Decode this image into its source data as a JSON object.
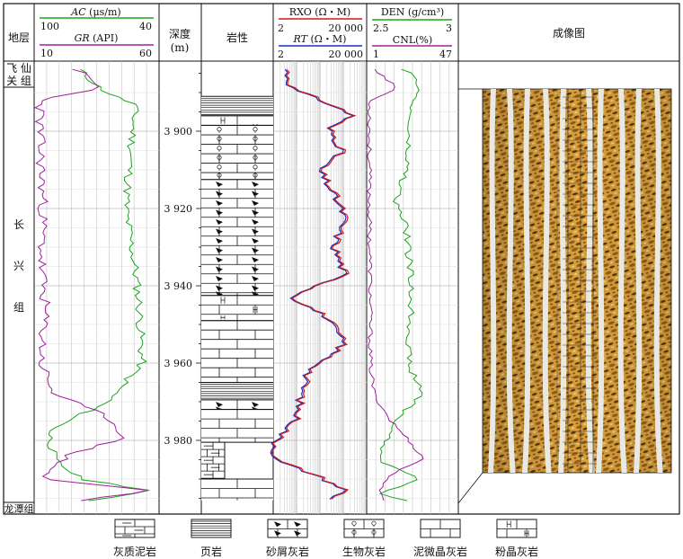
{
  "header": {
    "strata": "地层",
    "depth_line1": "深度",
    "depth_line2": "(m)",
    "lithology": "岩性",
    "image": "成像图"
  },
  "curves": {
    "ac": {
      "name": "AC",
      "unit": " (μs/m)",
      "min": "100",
      "max": "40",
      "color": "#1aa51a"
    },
    "gr": {
      "name": "GR",
      "unit": " (API)",
      "min": "10",
      "max": "60",
      "color": "#a0209c"
    },
    "rxo": {
      "name": "RXO",
      "unit": " (Ω・M)",
      "min": "2",
      "max": "20 000",
      "color": "#d01818"
    },
    "rt": {
      "name": "RT",
      "unit": " (Ω・M)",
      "min": "2",
      "max": "20 000",
      "color": "#1830c0"
    },
    "den": {
      "name": "DEN (g/cm³)",
      "min": "2.5",
      "max": "3",
      "color": "#1aa51a"
    },
    "cnl": {
      "name": "CNL(%)",
      "min": "1",
      "max": "47",
      "color": "#a0209c"
    }
  },
  "formations": [
    {
      "label": "飞仙关组",
      "display": [
        "飞 仙",
        "关 组"
      ]
    },
    {
      "label": "长兴组",
      "display": [
        "长",
        "兴",
        "组"
      ]
    },
    {
      "label": "龙潭组",
      "display": [
        "龙潭组"
      ]
    }
  ],
  "depth_ticks": [
    "3 900",
    "3 920",
    "3 940",
    "3 960",
    "3 980"
  ],
  "lithology_layers": [
    {
      "type": "shale",
      "top": 3891.0,
      "base": 3896.0
    },
    {
      "type": "silty-limestone",
      "top": 3896.0,
      "base": 3898.5
    },
    {
      "type": "bioclastic-limestone",
      "top": 3898.5,
      "base": 3912.5
    },
    {
      "type": "calcarenite",
      "top": 3912.5,
      "base": 3942.5
    },
    {
      "type": "silty-limestone",
      "top": 3942.5,
      "base": 3949.0
    },
    {
      "type": "micritic-limestone",
      "top": 3949.0,
      "base": 3965.0
    },
    {
      "type": "shale",
      "top": 3965.0,
      "base": 3969.5
    },
    {
      "type": "calcarenite",
      "top": 3969.5,
      "base": 3972.0
    },
    {
      "type": "micritic-limestone",
      "top": 3972.0,
      "base": 3980.5
    },
    {
      "type": "argillaceous-limestone",
      "top": 3980.5,
      "base": 3990.0
    },
    {
      "type": "micritic-limestone",
      "top": 3990.0,
      "base": 3995.5
    }
  ],
  "legend": [
    {
      "type": "argillaceous-limestone",
      "label": "灰质泥岩"
    },
    {
      "type": "shale",
      "label": "页岩"
    },
    {
      "type": "calcarenite",
      "label": "砂屑灰岩"
    },
    {
      "type": "bioclastic-limestone",
      "label": "生物灰岩"
    },
    {
      "type": "micritic-limestone",
      "label": "泥微晶灰岩"
    },
    {
      "type": "silty-limestone",
      "label": "粉晶灰岩"
    }
  ]
}
